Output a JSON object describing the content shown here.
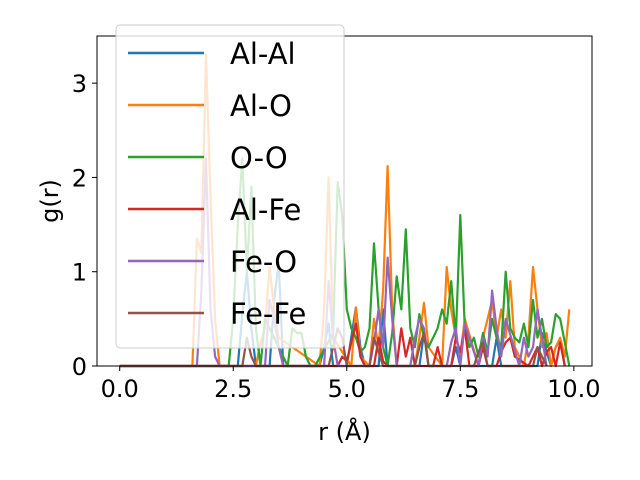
{
  "chart_data": {
    "type": "line",
    "title": "",
    "xlabel": "r (Å)",
    "ylabel": "g(r)",
    "xlim": [
      -0.5,
      10.4
    ],
    "ylim": [
      0,
      3.5
    ],
    "xticks": [
      0.0,
      2.5,
      5.0,
      7.5,
      10.0
    ],
    "xtick_labels": [
      "0.0",
      "2.5",
      "5.0",
      "7.5",
      "10.0"
    ],
    "yticks": [
      0,
      1,
      2,
      3
    ],
    "ytick_labels": [
      "0",
      "1",
      "2",
      "3"
    ],
    "grid": false,
    "legend_position": "upper-left",
    "series": [
      {
        "name": "Al-Al",
        "color": "#1f77b4",
        "x": [
          0,
          2.6,
          2.7,
          2.8,
          2.9,
          3.0,
          3.3,
          3.4,
          3.5,
          3.6,
          4.4,
          4.5,
          4.6,
          4.7,
          4.8,
          5.0,
          5.2,
          5.3,
          5.4,
          5.7,
          5.8,
          5.9,
          6.6,
          6.7,
          6.8,
          7.3,
          7.4,
          7.5,
          8.2,
          8.3,
          8.4,
          9.2,
          9.3,
          9.4,
          9.5,
          9.6,
          9.7,
          9.8
        ],
        "y": [
          0,
          0,
          0.55,
          1.0,
          0.4,
          0,
          0,
          0.7,
          1.1,
          0,
          0,
          0.2,
          0.45,
          0,
          0,
          0,
          0.62,
          0.2,
          0,
          0,
          0.6,
          0,
          0,
          0.35,
          0,
          0,
          0.2,
          0,
          0,
          0.3,
          0,
          0,
          0.35,
          0.15,
          0,
          0.2,
          0.28,
          0
        ]
      },
      {
        "name": "Al-O",
        "color": "#ff7f0e",
        "x": [
          0,
          1.6,
          1.7,
          1.8,
          1.9,
          2.0,
          2.1,
          2.2,
          3.0,
          3.1,
          3.2,
          3.3,
          3.4,
          3.5,
          4.4,
          4.5,
          4.6,
          4.7,
          5.1,
          5.2,
          5.3,
          5.5,
          5.6,
          5.7,
          5.8,
          5.9,
          6.0,
          6.1,
          6.5,
          6.6,
          6.7,
          6.8,
          7.1,
          7.2,
          7.3,
          7.4,
          7.5,
          7.6,
          7.9,
          8.0,
          8.1,
          8.2,
          8.3,
          8.4,
          8.5,
          8.6,
          8.7,
          8.9,
          9.0,
          9.1,
          9.2,
          9.3,
          9.4,
          9.5,
          9.6,
          9.7,
          9.8,
          9.9
        ],
        "y": [
          0,
          0,
          1.35,
          1.2,
          3.3,
          1.8,
          0.5,
          0,
          0,
          0.25,
          0.4,
          1.05,
          0.6,
          0.3,
          0,
          0.6,
          2.0,
          0.3,
          0,
          0.62,
          0.1,
          0,
          0.5,
          0.2,
          0.8,
          2.12,
          0.6,
          0,
          0,
          0.3,
          0.67,
          0.2,
          0,
          1.05,
          0.6,
          0.3,
          0.12,
          0.5,
          0,
          0.3,
          0.5,
          0.7,
          0.3,
          0.6,
          0.3,
          0.9,
          0.2,
          0,
          0.3,
          1.05,
          0.6,
          0.2,
          0.35,
          0,
          0.2,
          0.3,
          0.1,
          0.6
        ]
      },
      {
        "name": "O-O",
        "color": "#2ca02c",
        "x": [
          0,
          2.4,
          2.5,
          2.6,
          2.7,
          2.8,
          2.9,
          3.0,
          3.1,
          3.2,
          3.7,
          3.8,
          3.9,
          4.0,
          4.1,
          4.2,
          4.3,
          4.7,
          4.8,
          4.9,
          5.0,
          5.1,
          5.2,
          5.3,
          5.4,
          5.5,
          5.6,
          5.7,
          5.8,
          5.9,
          6.0,
          6.1,
          6.2,
          6.3,
          6.4,
          6.5,
          6.6,
          6.7,
          6.8,
          6.9,
          7.0,
          7.1,
          7.2,
          7.3,
          7.4,
          7.5,
          7.6,
          7.7,
          7.8,
          7.9,
          8.0,
          8.1,
          8.2,
          8.3,
          8.4,
          8.5,
          8.6,
          8.7,
          8.8,
          8.9,
          9.0,
          9.1,
          9.2,
          9.3,
          9.4,
          9.5,
          9.6,
          9.7,
          9.8,
          9.9
        ],
        "y": [
          0,
          0,
          0.5,
          1.5,
          2.2,
          1.0,
          1.9,
          0.4,
          0,
          0.5,
          0,
          0.4,
          0.35,
          0.35,
          0.1,
          0,
          0,
          0.35,
          1.95,
          1.6,
          0.6,
          0.4,
          0.3,
          0.15,
          0.2,
          0.4,
          1.3,
          0.6,
          0.2,
          0,
          0.35,
          0.95,
          0.6,
          1.45,
          0.4,
          0.2,
          0.55,
          0.3,
          0.2,
          0.3,
          0.4,
          0.6,
          0.45,
          0.9,
          0.3,
          1.6,
          0.4,
          0.2,
          0.3,
          0.1,
          0.35,
          0.15,
          0.5,
          0.3,
          0.2,
          1.0,
          0.4,
          0.3,
          0.25,
          0.45,
          0.2,
          0.7,
          0.3,
          0.5,
          0.2,
          0.25,
          0.55,
          0.5,
          0.25,
          0
        ]
      },
      {
        "name": "Al-Fe",
        "color": "#d62728",
        "x": [
          0,
          4.8,
          4.9,
          5.0,
          5.1,
          5.2,
          5.3,
          5.4,
          5.6,
          5.7,
          5.8,
          5.9,
          6.1,
          6.2,
          6.3,
          6.4,
          6.5,
          6.9,
          7.0,
          7.1,
          7.3,
          7.4,
          7.5,
          7.6,
          7.7,
          7.9,
          8.0,
          8.1,
          8.3,
          8.4,
          8.5,
          8.6,
          8.7,
          9.0,
          9.1,
          9.2,
          9.3,
          9.4,
          9.5,
          9.6,
          9.7,
          9.8
        ],
        "y": [
          0,
          0,
          0.1,
          0.05,
          0.25,
          0.45,
          0.1,
          0,
          0,
          0.3,
          0.05,
          0,
          0,
          0.4,
          0.1,
          0.3,
          0,
          0,
          0.2,
          0,
          0,
          0.3,
          0.15,
          0.4,
          0,
          0,
          0.2,
          0,
          0,
          0.15,
          0.25,
          0.3,
          0.1,
          0,
          0.1,
          0.2,
          0,
          0.15,
          0.2,
          0,
          0.25,
          0
        ]
      },
      {
        "name": "Fe-O",
        "color": "#9467bd",
        "x": [
          0,
          1.7,
          1.8,
          1.9,
          2.0,
          2.1,
          2.2,
          3.2,
          3.3,
          3.4,
          3.5,
          3.6,
          4.5,
          4.6,
          4.7,
          4.8,
          5.5,
          5.6,
          5.7,
          5.8,
          5.9,
          6.0,
          6.1,
          6.4,
          6.5,
          6.6,
          6.7,
          6.8,
          7.2,
          7.3,
          7.4,
          7.5,
          7.6,
          7.9,
          8.0,
          8.1,
          8.2,
          8.3,
          8.4,
          8.5,
          8.8,
          8.9,
          9.0,
          9.1,
          9.2,
          9.3,
          9.4
        ],
        "y": [
          0,
          0,
          0.8,
          2.2,
          0.6,
          0.1,
          0,
          0,
          0.7,
          0.5,
          0.2,
          0,
          0,
          0.9,
          0.3,
          0,
          0,
          0.25,
          0.6,
          0.2,
          1.15,
          0.5,
          0,
          0,
          0.3,
          0.5,
          0.4,
          0,
          0,
          0.25,
          0.4,
          0,
          0.45,
          0,
          0.3,
          0.1,
          0.8,
          0.4,
          0.1,
          0.5,
          0,
          0.3,
          0.1,
          0.2,
          0.6,
          0.3,
          0
        ]
      },
      {
        "name": "Fe-Fe",
        "color": "#8c564b",
        "x": [
          0,
          2.7,
          2.8,
          2.9,
          3.0,
          4.6,
          4.7,
          4.8,
          4.9,
          5.0,
          5.5,
          5.6,
          5.7,
          5.8,
          6.5,
          6.6,
          6.7,
          6.8,
          7.8,
          7.9,
          8.0,
          8.1,
          9.1,
          9.2,
          9.3,
          9.4
        ],
        "y": [
          0,
          0,
          0.3,
          0.1,
          0,
          0,
          0.2,
          0.4,
          0.3,
          0,
          0,
          0.3,
          0.15,
          0,
          0,
          0.2,
          0.35,
          0,
          0,
          0.15,
          0.25,
          0,
          0,
          0.2,
          0.1,
          0
        ]
      }
    ]
  }
}
